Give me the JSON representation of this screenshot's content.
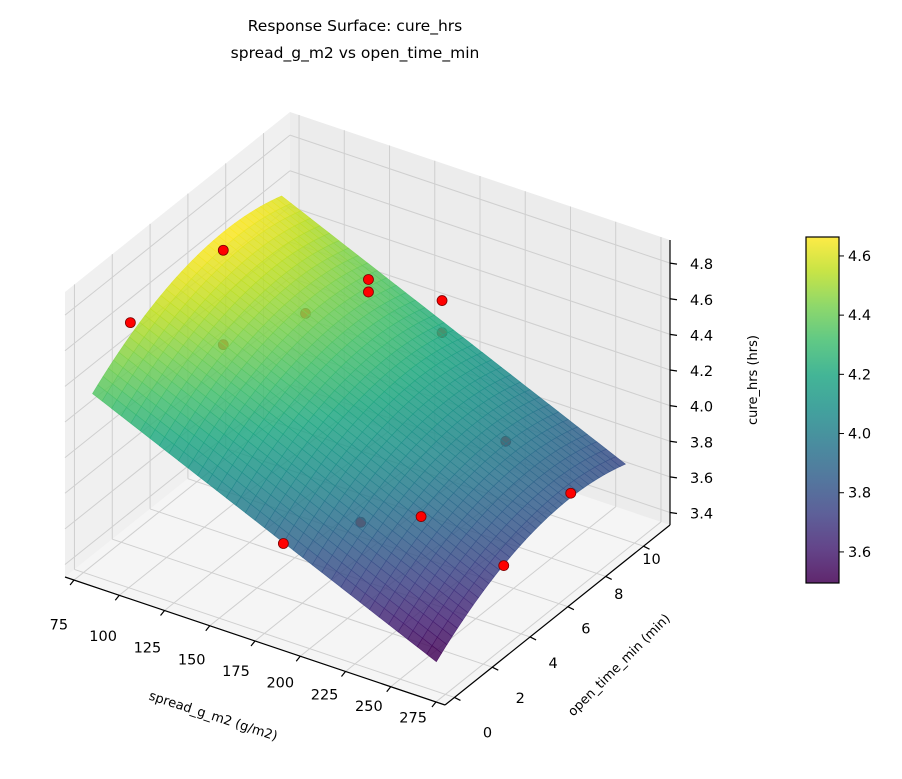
{
  "chart_data": {
    "type": "surface3d",
    "title": "Response Surface: cure_hrs",
    "subtitle": "spread_g_m2 vs open_time_min",
    "xlabel": "spread_g_m2 (g/m2)",
    "ylabel": "open_time_min (min)",
    "zlabel": "cure_hrs (hrs)",
    "xlim": [
      70,
      280
    ],
    "ylim": [
      -0.5,
      11.4
    ],
    "zlim": [
      3.33,
      4.93
    ],
    "x_ticks": [
      75,
      100,
      125,
      150,
      175,
      200,
      225,
      250,
      275
    ],
    "y_ticks": [
      0,
      2,
      4,
      6,
      8,
      10
    ],
    "z_ticks": [
      "3.4",
      "3.6",
      "3.8",
      "4.0",
      "4.2",
      "4.4",
      "4.6",
      "4.8"
    ],
    "surface": {
      "x_range": [
        80,
        270
      ],
      "y_range": [
        0,
        10
      ],
      "model": {
        "intercept_at_x80_y7": 4.67,
        "slope_x": -0.0045,
        "curvature_y": -0.0065,
        "y_peak": 7
      },
      "colormap": "viridis",
      "alpha": 0.85
    },
    "points": [
      {
        "x": 100,
        "y": 5,
        "z": 4.8,
        "hidden": false
      },
      {
        "x": 80,
        "y": 2,
        "z": 4.58,
        "hidden": true
      },
      {
        "x": 100,
        "y": 5,
        "z": 4.27,
        "hidden": true
      },
      {
        "x": 135,
        "y": 6,
        "z": 4.48,
        "hidden": true
      },
      {
        "x": 175,
        "y": 5.5,
        "z": 4.85,
        "hidden": false
      },
      {
        "x": 175,
        "y": 5.5,
        "z": 4.78,
        "hidden": false
      },
      {
        "x": 200,
        "y": 7,
        "z": 4.69,
        "hidden": false
      },
      {
        "x": 200,
        "y": 7,
        "z": 4.51,
        "hidden": true
      },
      {
        "x": 230,
        "y": 7.5,
        "z": 3.96,
        "hidden": true
      },
      {
        "x": 245,
        "y": 9.5,
        "z": 3.55,
        "hidden": false
      },
      {
        "x": 175,
        "y": 1,
        "z": 3.75,
        "hidden": false
      },
      {
        "x": 200,
        "y": 2.7,
        "z": 3.81,
        "hidden": true
      },
      {
        "x": 225,
        "y": 3.5,
        "z": 3.86,
        "hidden": false
      },
      {
        "x": 255,
        "y": 5,
        "z": 3.56,
        "hidden": false
      }
    ],
    "point_color": "#ff0000",
    "colorbar": {
      "range": [
        3.495,
        4.664
      ],
      "ticks": [
        "3.6",
        "3.8",
        "4.0",
        "4.2",
        "4.4",
        "4.6"
      ]
    }
  }
}
